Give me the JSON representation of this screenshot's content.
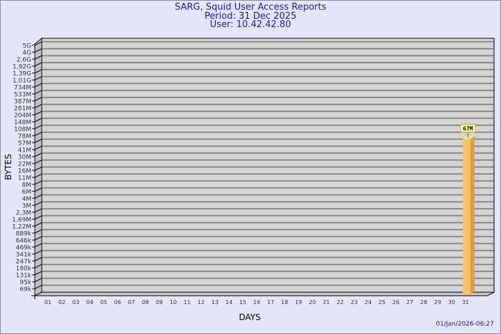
{
  "chart_data": {
    "type": "bar",
    "title": "SARG, Squid User Access Reports",
    "subtitle_period": "Period: 31 Dec 2025",
    "subtitle_user": "User: 10.42.42.80",
    "xlabel": "DAYS",
    "ylabel": "BYTES",
    "y_scale": "log",
    "y_ticks": [
      "5G",
      "4G",
      "2,6G",
      "1,92G",
      "1,39G",
      "1,01G",
      "734M",
      "533M",
      "387M",
      "281M",
      "204M",
      "148M",
      "108M",
      "78M",
      "57M",
      "41M",
      "30M",
      "22M",
      "16M",
      "11M",
      "8M",
      "6M",
      "4M",
      "3M",
      "2,3M",
      "1,69M",
      "1,22M",
      "889k",
      "646k",
      "469k",
      "341k",
      "247k",
      "180k",
      "131k",
      "95k",
      "69k"
    ],
    "y_tick_values": [
      5000000000.0,
      4000000000.0,
      2600000000.0,
      1920000000.0,
      1390000000.0,
      1010000000.0,
      734000000.0,
      533000000.0,
      387000000.0,
      281000000.0,
      204000000.0,
      148000000.0,
      108000000.0,
      78000000.0,
      57000000.0,
      41000000.0,
      30000000.0,
      22000000.0,
      16000000.0,
      11000000.0,
      8000000.0,
      6000000.0,
      4000000.0,
      3000000.0,
      2300000.0,
      1690000.0,
      1220000.0,
      889000.0,
      646000.0,
      469000.0,
      341000.0,
      247000.0,
      180000.0,
      131000.0,
      95000.0,
      69000.0
    ],
    "categories": [
      "01",
      "02",
      "03",
      "04",
      "05",
      "06",
      "07",
      "08",
      "09",
      "10",
      "11",
      "12",
      "13",
      "14",
      "15",
      "16",
      "17",
      "18",
      "19",
      "20",
      "21",
      "22",
      "23",
      "24",
      "25",
      "26",
      "27",
      "28",
      "29",
      "30",
      "31"
    ],
    "values": [
      null,
      null,
      null,
      null,
      null,
      null,
      null,
      null,
      null,
      null,
      null,
      null,
      null,
      null,
      null,
      null,
      null,
      null,
      null,
      null,
      null,
      null,
      null,
      null,
      null,
      null,
      null,
      null,
      null,
      null,
      67000000
    ],
    "data_labels": {
      "31": "67M"
    },
    "grid": true,
    "colors": {
      "bar": "#ffc266",
      "bar_side": "#e0a040",
      "wall": "#d3d3d3",
      "background": "#e6e6fa",
      "title": "#1a1aa6",
      "label_box": "#ffff99"
    }
  },
  "footer": {
    "timestamp": "01/Jan/2026-06:27"
  }
}
